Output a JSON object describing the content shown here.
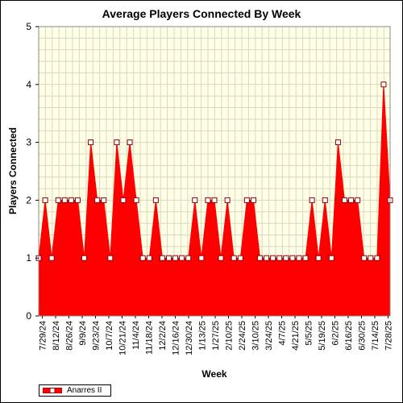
{
  "chart_data": {
    "type": "area",
    "title": "Average Players Connected By Week",
    "xlabel": "Week",
    "ylabel": "Players Connected",
    "ylim": [
      0,
      5
    ],
    "y_ticks": [
      "0",
      "1",
      "2",
      "3",
      "4",
      "5"
    ],
    "grid": true,
    "legend_position": "bottom-left",
    "x_tick_labels": [
      "7/29/24",
      "8/12/24",
      "8/26/24",
      "9/9/24",
      "9/23/24",
      "10/7/24",
      "10/21/24",
      "11/4/24",
      "11/18/24",
      "12/2/24",
      "12/16/24",
      "12/30/24",
      "1/13/25",
      "1/27/25",
      "2/10/25",
      "2/24/25",
      "3/10/25",
      "3/24/25",
      "4/7/25",
      "4/21/25",
      "5/5/25",
      "5/19/25",
      "6/2/25",
      "6/16/25",
      "6/30/25",
      "7/14/25",
      "7/28/25"
    ],
    "series": [
      {
        "name": "Anarres II",
        "color": "#ff0000",
        "marker_fill": "#ffffff",
        "marker_stroke": "#8b0000",
        "values": [
          1,
          2,
          1,
          2,
          2,
          2,
          2,
          1,
          3,
          2,
          2,
          1,
          3,
          2,
          3,
          2,
          1,
          1,
          2,
          1,
          1,
          1,
          1,
          1,
          2,
          1,
          2,
          2,
          1,
          2,
          1,
          1,
          2,
          2,
          1,
          1,
          1,
          1,
          1,
          1,
          1,
          1,
          2,
          1,
          2,
          1,
          3,
          2,
          2,
          2,
          1,
          1,
          1,
          4,
          2
        ]
      }
    ]
  },
  "colors": {
    "plot_background": "#ffffe6",
    "grid": "#d8d8c0",
    "area_fill": "#ff0000",
    "marker_fill": "#ffffff",
    "marker_stroke": "#8b0000"
  }
}
